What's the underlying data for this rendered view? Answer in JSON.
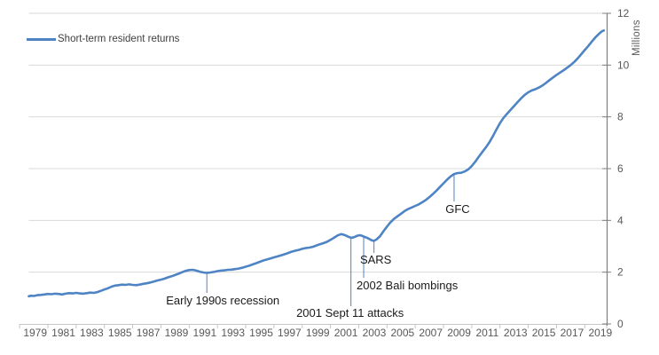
{
  "chart_data": {
    "type": "line",
    "title": "",
    "xlabel": "",
    "ylabel": "Millions",
    "xlim": [
      1979,
      2019
    ],
    "ylim": [
      0,
      12
    ],
    "grid": "horizontal",
    "legend_position": "top-left",
    "x_tick_years": [
      1979,
      1981,
      1983,
      1985,
      1987,
      1989,
      1991,
      1993,
      1995,
      1997,
      1999,
      2001,
      2003,
      2005,
      2007,
      2009,
      2011,
      2013,
      2015,
      2017,
      2019
    ],
    "y_ticks": [
      0,
      2,
      4,
      6,
      8,
      10,
      12
    ],
    "colors": {
      "line": "#4e84c4",
      "gridline": "#d9d9d9",
      "x_axis": "#c6c6c6",
      "y_axis": "#7f7f7f",
      "tick_text": "#595959",
      "annotation_text": "#1a1a1a"
    },
    "series": [
      {
        "name": "Short-term resident returns",
        "points": [
          [
            1978.9,
            1.07
          ],
          [
            1979.08,
            1.09
          ],
          [
            1979.25,
            1.08
          ],
          [
            1979.5,
            1.11
          ],
          [
            1979.75,
            1.12
          ],
          [
            1980,
            1.14
          ],
          [
            1980.25,
            1.16
          ],
          [
            1980.5,
            1.15
          ],
          [
            1980.75,
            1.17
          ],
          [
            1981,
            1.16
          ],
          [
            1981.25,
            1.14
          ],
          [
            1981.5,
            1.17
          ],
          [
            1981.75,
            1.19
          ],
          [
            1982,
            1.18
          ],
          [
            1982.25,
            1.2
          ],
          [
            1982.5,
            1.18
          ],
          [
            1982.75,
            1.17
          ],
          [
            1983,
            1.19
          ],
          [
            1983.25,
            1.21
          ],
          [
            1983.5,
            1.2
          ],
          [
            1983.75,
            1.23
          ],
          [
            1984,
            1.28
          ],
          [
            1984.25,
            1.33
          ],
          [
            1984.5,
            1.38
          ],
          [
            1984.75,
            1.44
          ],
          [
            1985,
            1.48
          ],
          [
            1985.25,
            1.5
          ],
          [
            1985.5,
            1.52
          ],
          [
            1985.75,
            1.51
          ],
          [
            1986,
            1.53
          ],
          [
            1986.25,
            1.51
          ],
          [
            1986.5,
            1.5
          ],
          [
            1986.75,
            1.52
          ],
          [
            1987,
            1.55
          ],
          [
            1987.25,
            1.57
          ],
          [
            1987.5,
            1.6
          ],
          [
            1987.75,
            1.64
          ],
          [
            1988,
            1.68
          ],
          [
            1988.25,
            1.71
          ],
          [
            1988.5,
            1.75
          ],
          [
            1988.75,
            1.8
          ],
          [
            1989,
            1.84
          ],
          [
            1989.25,
            1.89
          ],
          [
            1989.5,
            1.94
          ],
          [
            1989.75,
            2.0
          ],
          [
            1990,
            2.05
          ],
          [
            1990.25,
            2.08
          ],
          [
            1990.5,
            2.09
          ],
          [
            1990.75,
            2.06
          ],
          [
            1991,
            2.02
          ],
          [
            1991.25,
            1.99
          ],
          [
            1991.5,
            1.97
          ],
          [
            1991.75,
            1.99
          ],
          [
            1992,
            2.01
          ],
          [
            1992.25,
            2.04
          ],
          [
            1992.5,
            2.06
          ],
          [
            1992.75,
            2.07
          ],
          [
            1993,
            2.09
          ],
          [
            1993.25,
            2.1
          ],
          [
            1993.5,
            2.12
          ],
          [
            1993.75,
            2.14
          ],
          [
            1994,
            2.17
          ],
          [
            1994.25,
            2.21
          ],
          [
            1994.5,
            2.25
          ],
          [
            1994.75,
            2.3
          ],
          [
            1995,
            2.35
          ],
          [
            1995.25,
            2.4
          ],
          [
            1995.5,
            2.45
          ],
          [
            1995.75,
            2.49
          ],
          [
            1996,
            2.53
          ],
          [
            1996.25,
            2.57
          ],
          [
            1996.5,
            2.61
          ],
          [
            1996.75,
            2.65
          ],
          [
            1997,
            2.69
          ],
          [
            1997.25,
            2.74
          ],
          [
            1997.5,
            2.79
          ],
          [
            1997.75,
            2.83
          ],
          [
            1998,
            2.86
          ],
          [
            1998.25,
            2.9
          ],
          [
            1998.5,
            2.93
          ],
          [
            1998.75,
            2.95
          ],
          [
            1999,
            2.98
          ],
          [
            1999.25,
            3.03
          ],
          [
            1999.5,
            3.08
          ],
          [
            1999.75,
            3.12
          ],
          [
            2000,
            3.17
          ],
          [
            2000.25,
            3.25
          ],
          [
            2000.5,
            3.33
          ],
          [
            2000.75,
            3.42
          ],
          [
            2001,
            3.47
          ],
          [
            2001.17,
            3.45
          ],
          [
            2001.33,
            3.42
          ],
          [
            2001.5,
            3.37
          ],
          [
            2001.7,
            3.33
          ],
          [
            2001.85,
            3.34
          ],
          [
            2002,
            3.37
          ],
          [
            2002.17,
            3.41
          ],
          [
            2002.33,
            3.43
          ],
          [
            2002.5,
            3.4
          ],
          [
            2002.67,
            3.36
          ],
          [
            2002.83,
            3.33
          ],
          [
            2003,
            3.28
          ],
          [
            2003.17,
            3.23
          ],
          [
            2003.33,
            3.21
          ],
          [
            2003.5,
            3.26
          ],
          [
            2003.75,
            3.38
          ],
          [
            2004,
            3.58
          ],
          [
            2004.25,
            3.76
          ],
          [
            2004.5,
            3.93
          ],
          [
            2004.75,
            4.06
          ],
          [
            2005,
            4.16
          ],
          [
            2005.25,
            4.26
          ],
          [
            2005.5,
            4.36
          ],
          [
            2005.75,
            4.44
          ],
          [
            2006,
            4.5
          ],
          [
            2006.25,
            4.56
          ],
          [
            2006.5,
            4.62
          ],
          [
            2006.75,
            4.7
          ],
          [
            2007,
            4.79
          ],
          [
            2007.25,
            4.9
          ],
          [
            2007.5,
            5.02
          ],
          [
            2007.75,
            5.15
          ],
          [
            2008,
            5.29
          ],
          [
            2008.25,
            5.43
          ],
          [
            2008.5,
            5.57
          ],
          [
            2008.75,
            5.7
          ],
          [
            2009,
            5.79
          ],
          [
            2009.25,
            5.83
          ],
          [
            2009.5,
            5.84
          ],
          [
            2009.75,
            5.89
          ],
          [
            2010,
            5.97
          ],
          [
            2010.25,
            6.1
          ],
          [
            2010.5,
            6.27
          ],
          [
            2010.75,
            6.46
          ],
          [
            2011,
            6.64
          ],
          [
            2011.25,
            6.82
          ],
          [
            2011.5,
            7.02
          ],
          [
            2011.75,
            7.26
          ],
          [
            2012,
            7.52
          ],
          [
            2012.25,
            7.76
          ],
          [
            2012.5,
            7.96
          ],
          [
            2012.75,
            8.12
          ],
          [
            2013,
            8.27
          ],
          [
            2013.25,
            8.42
          ],
          [
            2013.5,
            8.57
          ],
          [
            2013.75,
            8.72
          ],
          [
            2014,
            8.85
          ],
          [
            2014.25,
            8.95
          ],
          [
            2014.5,
            9.02
          ],
          [
            2014.75,
            9.07
          ],
          [
            2015,
            9.13
          ],
          [
            2015.25,
            9.21
          ],
          [
            2015.5,
            9.31
          ],
          [
            2015.75,
            9.42
          ],
          [
            2016,
            9.52
          ],
          [
            2016.25,
            9.62
          ],
          [
            2016.5,
            9.71
          ],
          [
            2016.75,
            9.8
          ],
          [
            2017,
            9.9
          ],
          [
            2017.25,
            10.0
          ],
          [
            2017.5,
            10.12
          ],
          [
            2017.75,
            10.26
          ],
          [
            2018,
            10.42
          ],
          [
            2018.25,
            10.58
          ],
          [
            2018.5,
            10.74
          ],
          [
            2018.75,
            10.91
          ],
          [
            2019,
            11.07
          ],
          [
            2019.25,
            11.2
          ],
          [
            2019.45,
            11.3
          ],
          [
            2019.6,
            11.34
          ]
        ]
      }
    ],
    "annotations": [
      {
        "label": "Early 1990s recession",
        "year": 1991.5,
        "value": 1.97
      },
      {
        "label": "2001 Sept 11 attacks",
        "year": 2001.7,
        "value": 3.33
      },
      {
        "label": "2002 Bali bombings",
        "year": 2002.6,
        "value": 3.37
      },
      {
        "label": "SARS",
        "year": 2003.33,
        "value": 3.21
      },
      {
        "label": "GFC",
        "year": 2009.0,
        "value": 5.79
      }
    ]
  }
}
